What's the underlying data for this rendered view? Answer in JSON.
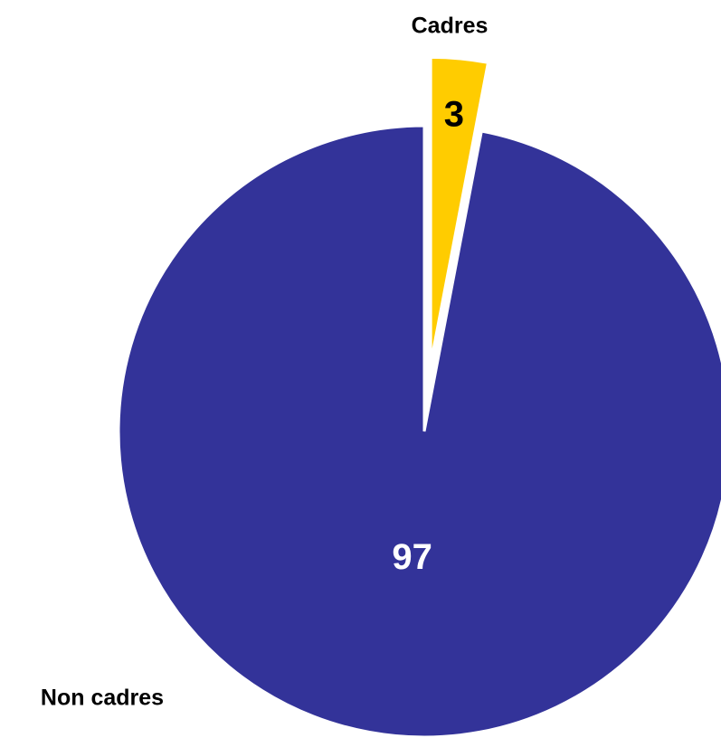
{
  "chart_data": {
    "type": "pie",
    "categories": [
      "Cadres",
      "Non cadres"
    ],
    "values": [
      3,
      97
    ],
    "colors": [
      "#ffcc00",
      "#333399"
    ],
    "value_label_colors": [
      "#000000",
      "#ffffff"
    ]
  }
}
